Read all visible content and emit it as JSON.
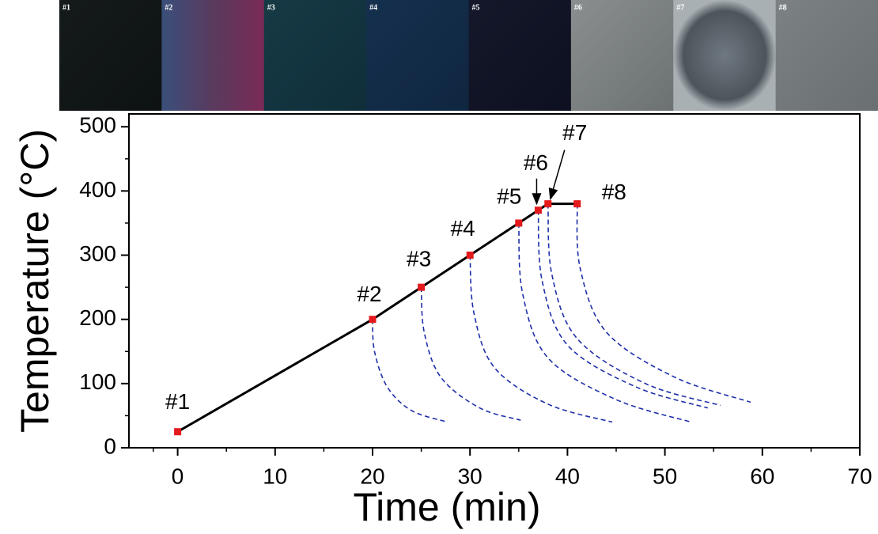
{
  "chart_data": {
    "type": "line",
    "x_label": "Time (min)",
    "y_label": "Temperature (°C)",
    "xlim": [
      -5,
      70
    ],
    "xticks": [
      0,
      10,
      20,
      30,
      40,
      50,
      60,
      70
    ],
    "ylim": [
      0,
      520
    ],
    "yticks": [
      0,
      100,
      200,
      300,
      400,
      500
    ],
    "panel_labels": [
      "#1",
      "#2",
      "#3",
      "#4",
      "#5",
      "#6",
      "#7",
      "#8"
    ],
    "point_labels": [
      "#1",
      "#2",
      "#3",
      "#4",
      "#5",
      "#6",
      "#7",
      "#8"
    ],
    "series": [
      {
        "x": [
          0,
          20,
          25,
          30,
          35,
          37,
          38,
          41
        ],
        "values": [
          25,
          200,
          250,
          300,
          350,
          370,
          380,
          380
        ],
        "color": "#000000",
        "marker_color": "#e41a1c"
      }
    ],
    "cooling_color": "#1f2fa8",
    "cooling_curves": [
      {
        "x": [
          20,
          20.2,
          21.5,
          24,
          27.7
        ],
        "values": [
          200,
          150,
          95,
          58,
          40
        ]
      },
      {
        "x": [
          25,
          25.3,
          27,
          31,
          35.2
        ],
        "values": [
          250,
          180,
          110,
          62,
          43
        ]
      },
      {
        "x": [
          30,
          30.4,
          32.5,
          38,
          44.6
        ],
        "values": [
          300,
          210,
          125,
          68,
          40
        ]
      },
      {
        "x": [
          35,
          35.4,
          38,
          45,
          52.7
        ],
        "values": [
          350,
          240,
          140,
          75,
          40
        ]
      },
      {
        "x": [
          37,
          37.4,
          40,
          47,
          54.4
        ],
        "values": [
          370,
          260,
          160,
          95,
          62
        ]
      },
      {
        "x": [
          38,
          38.4,
          41,
          48,
          55.7
        ],
        "values": [
          380,
          270,
          170,
          100,
          66
        ]
      },
      {
        "x": [
          41,
          41.3,
          44,
          51,
          58.8
        ],
        "values": [
          380,
          280,
          180,
          110,
          71
        ]
      }
    ]
  }
}
